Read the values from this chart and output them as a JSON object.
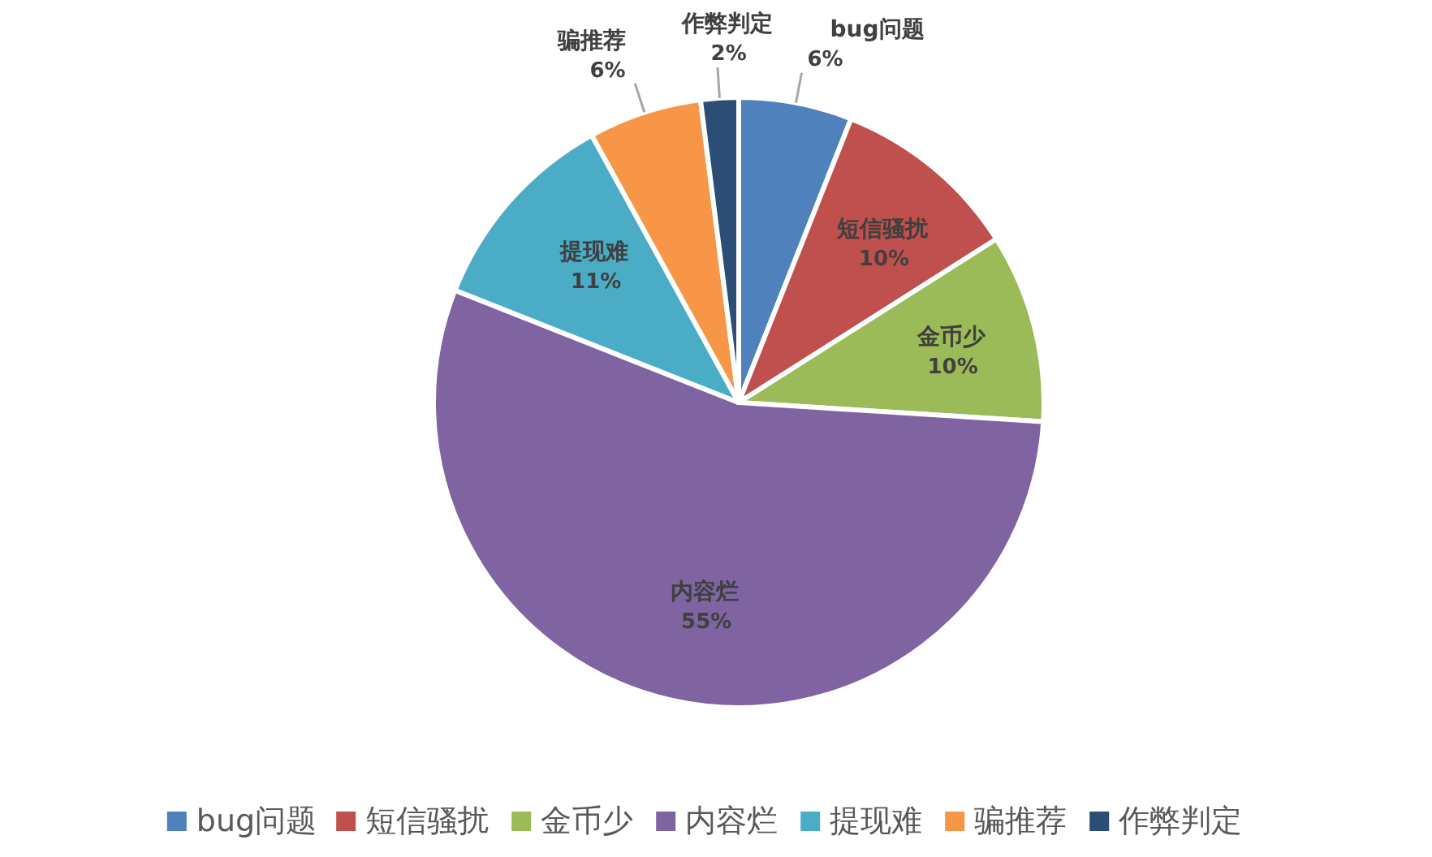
{
  "chart_data": {
    "type": "pie",
    "categories": [
      "bug问题",
      "短信骚扰",
      "金币少",
      "内容烂",
      "提现难",
      "骗推荐",
      "作弊判定"
    ],
    "values": [
      6,
      10,
      10,
      55,
      11,
      6,
      2
    ],
    "colors": [
      "#4f81bd",
      "#c0504d",
      "#9bbb59",
      "#8064a2",
      "#4bacc6",
      "#f79646",
      "#2c4d75"
    ],
    "value_labels": [
      "6%",
      "10%",
      "10%",
      "55%",
      "11%",
      "6%",
      "2%"
    ],
    "legend": "bottom"
  }
}
